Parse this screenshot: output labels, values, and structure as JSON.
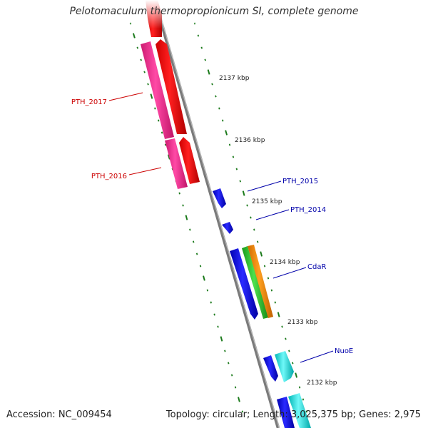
{
  "title": "Pelotomaculum thermopropionicum SI, complete genome",
  "footer": {
    "accession": "Accession: NC_009454",
    "summary": "Topology: circular; Length: 3,025,375 bp; Genes: 2,975"
  },
  "colors": {
    "backbone": "#888888",
    "tick": "#1b7a1b",
    "label_forward": "#cc0000",
    "label_reverse": "#0000aa"
  },
  "kbp_labels": [
    "2137 kbp",
    "2136 kbp",
    "2135 kbp",
    "2134 kbp",
    "2133 kbp",
    "2132 kbp"
  ],
  "gene_labels": {
    "pth_2017": "PTH_2017",
    "pth_2016": "PTH_2016",
    "pth_2015": "PTH_2015",
    "pth_2014": "PTH_2014",
    "cdar": "CdaR",
    "nuoe": "NuoE"
  },
  "features": [
    {
      "name": "PTH_2017",
      "strand": "forward",
      "color": "#ee2a8e"
    },
    {
      "name": "PTH_2016",
      "strand": "forward",
      "color": "#ee2a8e"
    },
    {
      "name": "PTH_2015",
      "strand": "reverse",
      "color": "#1414dd"
    },
    {
      "name": "PTH_2014",
      "strand": "reverse",
      "color": "#1414dd"
    },
    {
      "name": "CdaR",
      "strand": "reverse",
      "color": "#ff8800"
    },
    {
      "name": "NuoE",
      "strand": "reverse",
      "color": "#00e0e0"
    }
  ]
}
